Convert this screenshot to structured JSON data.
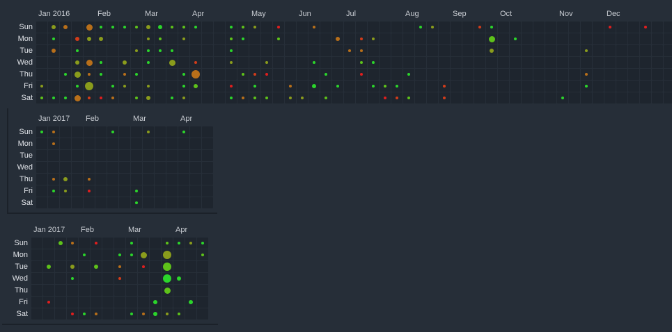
{
  "colors": {
    "background": "#262e38",
    "cell": "#1e252e",
    "level_0": "#2bd52b",
    "level_1": "#5ec21a",
    "level_2": "#8a9c1c",
    "level_3": "#b86f1a",
    "level_4": "#d23c1a",
    "level_5": "#e01e1e"
  },
  "day_labels": [
    "Sun",
    "Mon",
    "Tue",
    "Wed",
    "Thu",
    "Fri",
    "Sat"
  ],
  "heatmaps": [
    {
      "id": "heatmap-2016",
      "weeks": 54,
      "months": [
        {
          "label": "Jan 2016",
          "week": 0
        },
        {
          "label": "Feb",
          "week": 5
        },
        {
          "label": "Mar",
          "week": 9
        },
        {
          "label": "Apr",
          "week": 13
        },
        {
          "label": "May",
          "week": 18
        },
        {
          "label": "Jun",
          "week": 22
        },
        {
          "label": "Jul",
          "week": 26
        },
        {
          "label": "Aug",
          "week": 31
        },
        {
          "label": "Sep",
          "week": 35
        },
        {
          "label": "Oct",
          "week": 39
        },
        {
          "label": "Nov",
          "week": 44
        },
        {
          "label": "Dec",
          "week": 48
        }
      ],
      "points": [
        [
          1,
          0,
          1,
          2
        ],
        [
          2,
          0,
          1,
          3
        ],
        [
          4,
          0,
          2,
          3
        ],
        [
          5,
          0,
          0,
          0
        ],
        [
          6,
          0,
          0,
          0
        ],
        [
          7,
          0,
          0,
          0
        ],
        [
          8,
          0,
          0,
          1
        ],
        [
          9,
          0,
          1,
          2
        ],
        [
          10,
          0,
          1,
          0
        ],
        [
          11,
          0,
          0,
          1
        ],
        [
          12,
          0,
          0,
          1
        ],
        [
          13,
          0,
          0,
          0
        ],
        [
          16,
          0,
          0,
          0
        ],
        [
          17,
          0,
          0,
          1
        ],
        [
          18,
          0,
          0,
          2
        ],
        [
          20,
          0,
          0,
          5
        ],
        [
          23,
          0,
          0,
          3
        ],
        [
          32,
          0,
          0,
          0
        ],
        [
          33,
          0,
          0,
          2
        ],
        [
          37,
          0,
          0,
          4
        ],
        [
          38,
          0,
          0,
          0
        ],
        [
          48,
          0,
          0,
          5
        ],
        [
          51,
          0,
          0,
          5
        ],
        [
          1,
          1,
          0,
          0
        ],
        [
          3,
          1,
          1,
          4
        ],
        [
          4,
          1,
          1,
          2
        ],
        [
          5,
          1,
          1,
          2
        ],
        [
          9,
          1,
          0,
          2
        ],
        [
          10,
          1,
          0,
          1
        ],
        [
          12,
          1,
          0,
          2
        ],
        [
          16,
          1,
          0,
          1
        ],
        [
          17,
          1,
          0,
          0
        ],
        [
          20,
          1,
          0,
          1
        ],
        [
          25,
          1,
          1,
          3
        ],
        [
          27,
          1,
          0,
          4
        ],
        [
          28,
          1,
          0,
          2
        ],
        [
          38,
          1,
          2,
          1
        ],
        [
          40,
          1,
          0,
          0
        ],
        [
          1,
          2,
          1,
          3
        ],
        [
          3,
          2,
          0,
          0
        ],
        [
          8,
          2,
          0,
          2
        ],
        [
          9,
          2,
          0,
          0
        ],
        [
          10,
          2,
          0,
          0
        ],
        [
          11,
          2,
          0,
          0
        ],
        [
          16,
          2,
          0,
          0
        ],
        [
          26,
          2,
          0,
          3
        ],
        [
          27,
          2,
          0,
          3
        ],
        [
          38,
          2,
          1,
          2
        ],
        [
          46,
          2,
          0,
          2
        ],
        [
          3,
          3,
          1,
          2
        ],
        [
          4,
          3,
          2,
          3
        ],
        [
          5,
          3,
          0,
          0
        ],
        [
          7,
          3,
          1,
          2
        ],
        [
          9,
          3,
          0,
          0
        ],
        [
          11,
          3,
          2,
          2
        ],
        [
          13,
          3,
          0,
          4
        ],
        [
          16,
          3,
          0,
          2
        ],
        [
          19,
          3,
          0,
          2
        ],
        [
          23,
          3,
          0,
          0
        ],
        [
          27,
          3,
          0,
          1
        ],
        [
          28,
          3,
          0,
          0
        ],
        [
          2,
          4,
          0,
          0
        ],
        [
          3,
          4,
          2,
          2
        ],
        [
          4,
          4,
          0,
          3
        ],
        [
          5,
          4,
          0,
          0
        ],
        [
          7,
          4,
          0,
          3
        ],
        [
          8,
          4,
          0,
          0
        ],
        [
          12,
          4,
          0,
          0
        ],
        [
          13,
          4,
          3,
          3
        ],
        [
          17,
          4,
          0,
          1
        ],
        [
          18,
          4,
          0,
          4
        ],
        [
          19,
          4,
          0,
          5
        ],
        [
          24,
          4,
          0,
          0
        ],
        [
          27,
          4,
          0,
          5
        ],
        [
          31,
          4,
          0,
          0
        ],
        [
          46,
          4,
          0,
          3
        ],
        [
          0,
          5,
          0,
          2
        ],
        [
          3,
          5,
          0,
          0
        ],
        [
          4,
          5,
          3,
          2
        ],
        [
          6,
          5,
          0,
          0
        ],
        [
          7,
          5,
          0,
          2
        ],
        [
          9,
          5,
          0,
          2
        ],
        [
          12,
          5,
          0,
          0
        ],
        [
          13,
          5,
          1,
          1
        ],
        [
          16,
          5,
          0,
          5
        ],
        [
          18,
          5,
          0,
          0
        ],
        [
          21,
          5,
          0,
          3
        ],
        [
          23,
          5,
          1,
          0
        ],
        [
          25,
          5,
          0,
          0
        ],
        [
          28,
          5,
          0,
          0
        ],
        [
          29,
          5,
          0,
          1
        ],
        [
          30,
          5,
          0,
          0
        ],
        [
          34,
          5,
          0,
          4
        ],
        [
          46,
          5,
          0,
          0
        ],
        [
          0,
          6,
          0,
          1
        ],
        [
          1,
          6,
          0,
          0
        ],
        [
          2,
          6,
          0,
          0
        ],
        [
          3,
          6,
          2,
          3
        ],
        [
          4,
          6,
          0,
          4
        ],
        [
          5,
          6,
          0,
          5
        ],
        [
          6,
          6,
          0,
          3
        ],
        [
          8,
          6,
          0,
          1
        ],
        [
          9,
          6,
          1,
          2
        ],
        [
          11,
          6,
          0,
          0
        ],
        [
          12,
          6,
          0,
          2
        ],
        [
          16,
          6,
          0,
          0
        ],
        [
          17,
          6,
          0,
          3
        ],
        [
          18,
          6,
          0,
          1
        ],
        [
          19,
          6,
          0,
          1
        ],
        [
          21,
          6,
          0,
          2
        ],
        [
          22,
          6,
          0,
          2
        ],
        [
          24,
          6,
          0,
          1
        ],
        [
          29,
          6,
          0,
          5
        ],
        [
          30,
          6,
          0,
          4
        ],
        [
          31,
          6,
          0,
          1
        ],
        [
          34,
          6,
          0,
          4
        ],
        [
          44,
          6,
          0,
          0
        ]
      ]
    },
    {
      "id": "heatmap-2017-a",
      "weeks": 15,
      "months": [
        {
          "label": "Jan 2017",
          "week": 0
        },
        {
          "label": "Feb",
          "week": 4
        },
        {
          "label": "Mar",
          "week": 8
        },
        {
          "label": "Apr",
          "week": 12
        }
      ],
      "points": [
        [
          0,
          0,
          0,
          0
        ],
        [
          1,
          0,
          0,
          3
        ],
        [
          6,
          0,
          0,
          0
        ],
        [
          9,
          0,
          0,
          2
        ],
        [
          12,
          0,
          0,
          0
        ],
        [
          1,
          1,
          0,
          3
        ],
        [
          1,
          4,
          0,
          3
        ],
        [
          2,
          4,
          1,
          2
        ],
        [
          4,
          4,
          0,
          3
        ],
        [
          1,
          5,
          0,
          0
        ],
        [
          2,
          5,
          0,
          2
        ],
        [
          4,
          5,
          0,
          5
        ],
        [
          8,
          5,
          0,
          0
        ],
        [
          8,
          6,
          0,
          0
        ]
      ]
    },
    {
      "id": "heatmap-2017-b",
      "weeks": 15,
      "months": [
        {
          "label": "Jan 2017",
          "week": 0
        },
        {
          "label": "Feb",
          "week": 4
        },
        {
          "label": "Mar",
          "week": 8
        },
        {
          "label": "Apr",
          "week": 12
        }
      ],
      "points": [
        [
          2,
          0,
          1,
          1
        ],
        [
          3,
          0,
          0,
          3
        ],
        [
          5,
          0,
          0,
          5
        ],
        [
          8,
          0,
          0,
          0
        ],
        [
          11,
          0,
          0,
          1
        ],
        [
          12,
          0,
          0,
          0
        ],
        [
          13,
          0,
          0,
          2
        ],
        [
          14,
          0,
          0,
          0
        ],
        [
          4,
          1,
          0,
          0
        ],
        [
          7,
          1,
          0,
          0
        ],
        [
          8,
          1,
          0,
          0
        ],
        [
          9,
          1,
          2,
          2
        ],
        [
          11,
          1,
          3,
          2
        ],
        [
          14,
          1,
          0,
          1
        ],
        [
          1,
          2,
          1,
          1
        ],
        [
          3,
          2,
          1,
          2
        ],
        [
          5,
          2,
          1,
          1
        ],
        [
          7,
          2,
          0,
          3
        ],
        [
          9,
          2,
          0,
          5
        ],
        [
          11,
          2,
          3,
          1
        ],
        [
          3,
          3,
          0,
          0
        ],
        [
          7,
          3,
          0,
          4
        ],
        [
          11,
          3,
          3,
          0
        ],
        [
          12,
          3,
          1,
          0
        ],
        [
          11,
          4,
          2,
          1
        ],
        [
          1,
          5,
          0,
          5
        ],
        [
          10,
          5,
          1,
          0
        ],
        [
          13,
          5,
          1,
          0
        ],
        [
          3,
          6,
          0,
          5
        ],
        [
          4,
          6,
          0,
          0
        ],
        [
          5,
          6,
          0,
          3
        ],
        [
          8,
          6,
          0,
          0
        ],
        [
          9,
          6,
          0,
          3
        ],
        [
          10,
          6,
          1,
          0
        ],
        [
          11,
          6,
          0,
          2
        ],
        [
          12,
          6,
          0,
          1
        ]
      ]
    }
  ]
}
